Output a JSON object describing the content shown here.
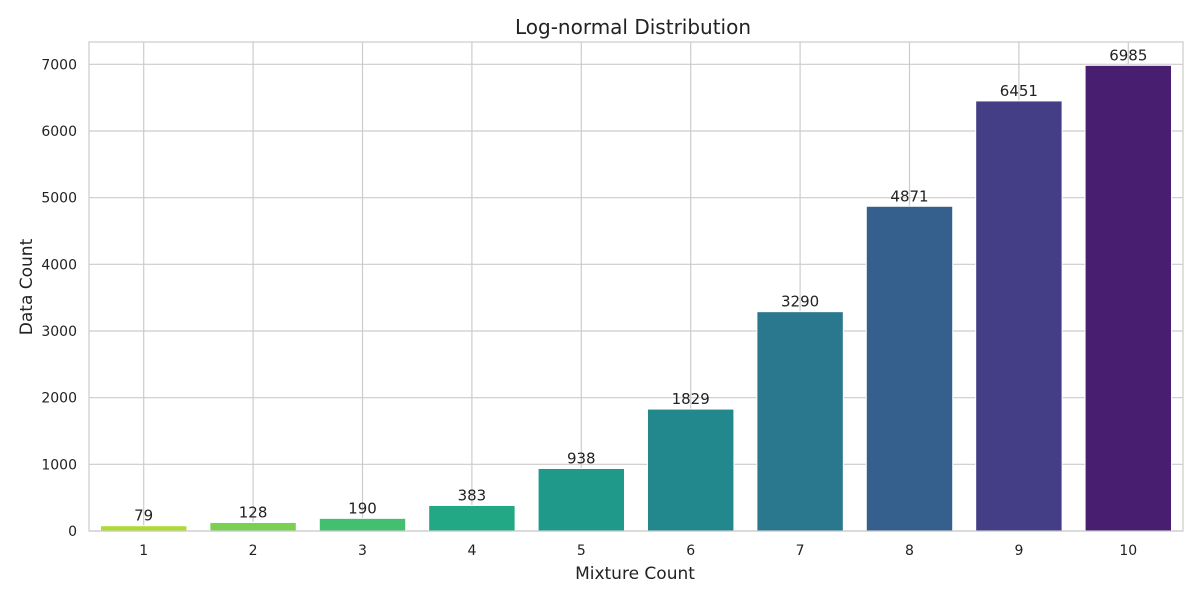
{
  "chart_data": {
    "type": "bar",
    "title": "Log-normal Distribution",
    "xlabel": "Mixture Count",
    "ylabel": "Data Count",
    "categories": [
      "1",
      "2",
      "3",
      "4",
      "5",
      "6",
      "7",
      "8",
      "9",
      "10"
    ],
    "values": [
      79,
      128,
      190,
      383,
      938,
      1829,
      3290,
      4871,
      6451,
      6985
    ],
    "data_labels": [
      "79",
      "128",
      "190",
      "383",
      "938",
      "1829",
      "3290",
      "4871",
      "6451",
      "6985"
    ],
    "ylim": [
      0,
      7335
    ],
    "yticks": [
      0,
      1000,
      2000,
      3000,
      4000,
      5000,
      6000,
      7000
    ],
    "ytick_labels": [
      "0",
      "1000",
      "2000",
      "3000",
      "4000",
      "5000",
      "6000",
      "7000"
    ],
    "grid": true,
    "legend": "none",
    "colors": [
      "#b5de2b",
      "#6ece58",
      "#35b779",
      "#1f9e89",
      "#21918c",
      "#26828e",
      "#31688e",
      "#3e4989",
      "#482878",
      "#440154"
    ],
    "bar_colors": [
      "#addc30",
      "#7ad151",
      "#44bf70",
      "#22a884",
      "#1f9a8a",
      "#23888e",
      "#2a788e",
      "#355f8d",
      "#433e85",
      "#481f70"
    ]
  }
}
